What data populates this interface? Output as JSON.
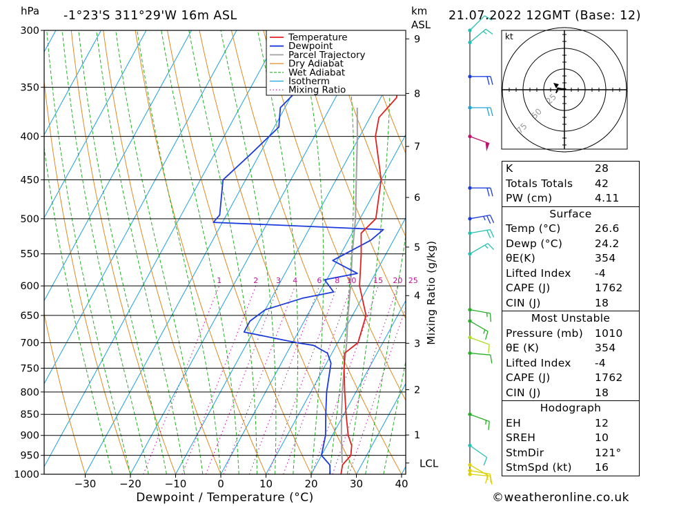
{
  "header": {
    "unit_left": "hPa",
    "location": "-1°23'S  311°29'W  16m  ASL",
    "unit_km": "km",
    "unit_asl": "ASL",
    "datetime": "21.07.2022  12GMT  (Base: 12)"
  },
  "chart_data": {
    "type": "skew-t log-p sounding",
    "xlabel": "Dewpoint / Temperature (°C)",
    "ylabel_left": "hPa",
    "ylabel_right": "Mixing Ratio (g/kg)",
    "pressure_levels": [
      300,
      350,
      400,
      450,
      500,
      550,
      600,
      650,
      700,
      750,
      800,
      850,
      900,
      950,
      1000
    ],
    "temperature_ticks": [
      -30,
      -20,
      -10,
      0,
      10,
      20,
      30,
      40
    ],
    "km_ticks": [
      1,
      2,
      3,
      4,
      5,
      6,
      7,
      8,
      9
    ],
    "km_pressures": [
      899,
      795,
      701,
      616,
      540,
      472,
      411,
      356,
      307
    ],
    "lcl_label": "LCL",
    "lcl_pressure": 970,
    "mixing_ratio_labels": [
      "1",
      "2",
      "3",
      "4",
      "6",
      "8",
      "10",
      "15",
      "20",
      "25"
    ],
    "mixing_ratio_values": [
      1,
      2,
      3,
      4,
      6,
      8,
      10,
      15,
      20,
      25
    ],
    "legend": [
      "Temperature",
      "Dewpoint",
      "Parcel Trajectory",
      "Dry Adiabat",
      "Wet Adiabat",
      "Isotherm",
      "Mixing Ratio"
    ],
    "colors": {
      "temperature": "#e02020",
      "dewpoint": "#1a3adc",
      "parcel": "#a0a0a0",
      "dry_adiabat": "#e08a20",
      "wet_adiabat": "#22b022",
      "isotherm": "#1aa0e0",
      "mixing_ratio": "#c0109a"
    },
    "temperature_profile": [
      [
        1000,
        26.6
      ],
      [
        975,
        25.8
      ],
      [
        950,
        26.5
      ],
      [
        925,
        25.5
      ],
      [
        900,
        23.5
      ],
      [
        850,
        20.5
      ],
      [
        800,
        17.5
      ],
      [
        750,
        14.5
      ],
      [
        720,
        12.8
      ],
      [
        700,
        14.5
      ],
      [
        650,
        13.0
      ],
      [
        600,
        8.0
      ],
      [
        550,
        4.5
      ],
      [
        520,
        2.0
      ],
      [
        500,
        3.5
      ],
      [
        450,
        0.0
      ],
      [
        400,
        -6.5
      ],
      [
        380,
        -8.0
      ],
      [
        360,
        -6.5
      ],
      [
        350,
        -7.5
      ]
    ],
    "dewpoint_profile": [
      [
        1000,
        24.2
      ],
      [
        975,
        23.0
      ],
      [
        950,
        20.0
      ],
      [
        900,
        18.5
      ],
      [
        850,
        16.0
      ],
      [
        800,
        13.5
      ],
      [
        740,
        11.0
      ],
      [
        720,
        9.0
      ],
      [
        705,
        5.0
      ],
      [
        700,
        1.0
      ],
      [
        680,
        -12.0
      ],
      [
        660,
        -12.0
      ],
      [
        640,
        -10.0
      ],
      [
        620,
        -3.0
      ],
      [
        610,
        3.0
      ],
      [
        590,
        -0.5
      ],
      [
        580,
        6.0
      ],
      [
        560,
        -1.0
      ],
      [
        530,
        5.0
      ],
      [
        515,
        6.5
      ],
      [
        505,
        -32.0
      ],
      [
        495,
        -31.5
      ],
      [
        450,
        -35.0
      ],
      [
        420,
        -32.0
      ],
      [
        390,
        -29.0
      ],
      [
        370,
        -31.0
      ],
      [
        340,
        -28.0
      ],
      [
        330,
        -25.0
      ],
      [
        320,
        -24.0
      ],
      [
        305,
        -21.0
      ]
    ],
    "parcel_profile": [
      [
        970,
        25.5
      ],
      [
        900,
        22.0
      ],
      [
        850,
        19.5
      ],
      [
        800,
        17.0
      ],
      [
        750,
        14.5
      ],
      [
        700,
        12.0
      ],
      [
        650,
        9.0
      ],
      [
        600,
        6.0
      ],
      [
        550,
        2.5
      ],
      [
        500,
        -1.0
      ],
      [
        450,
        -5.5
      ],
      [
        400,
        -10.5
      ],
      [
        370,
        -14.0
      ]
    ],
    "wind_barbs": [
      {
        "p": 1000,
        "dir": 95,
        "spd": 15,
        "color": "#dcd000"
      },
      {
        "p": 990,
        "dir": 100,
        "spd": 15,
        "color": "#dcd000"
      },
      {
        "p": 975,
        "dir": 120,
        "spd": 10,
        "color": "#dcd000"
      },
      {
        "p": 925,
        "dir": 125,
        "spd": 10,
        "color": "#22c0b0"
      },
      {
        "p": 850,
        "dir": 110,
        "spd": 15,
        "color": "#22b022"
      },
      {
        "p": 720,
        "dir": 95,
        "spd": 10,
        "color": "#22b022"
      },
      {
        "p": 690,
        "dir": 110,
        "spd": 10,
        "color": "#aadd22"
      },
      {
        "p": 660,
        "dir": 120,
        "spd": 15,
        "color": "#22b022"
      },
      {
        "p": 640,
        "dir": 100,
        "spd": 15,
        "color": "#22b022"
      },
      {
        "p": 550,
        "dir": 60,
        "spd": 15,
        "color": "#22c0b0"
      },
      {
        "p": 520,
        "dir": 80,
        "spd": 20,
        "color": "#22c0b0"
      },
      {
        "p": 500,
        "dir": 80,
        "spd": 25,
        "color": "#1a3adc"
      },
      {
        "p": 460,
        "dir": 90,
        "spd": 20,
        "color": "#1a3adc"
      },
      {
        "p": 400,
        "dir": 110,
        "spd": 50,
        "color": "#c0106a"
      },
      {
        "p": 370,
        "dir": 90,
        "spd": 20,
        "color": "#22a0d0"
      },
      {
        "p": 340,
        "dir": 90,
        "spd": 20,
        "color": "#1a3adc"
      },
      {
        "p": 310,
        "dir": 50,
        "spd": 15,
        "color": "#22c0b0"
      },
      {
        "p": 300,
        "dir": 45,
        "spd": 10,
        "color": "#22c0b0"
      }
    ]
  },
  "hodograph": {
    "unit": "kt",
    "rings": [
      "25",
      "50",
      "75"
    ],
    "points": [
      [
        -10,
        4
      ],
      [
        -8,
        -2
      ],
      [
        -3,
        -1
      ],
      [
        2,
        -1
      ]
    ]
  },
  "indices": {
    "rows": [
      {
        "label": "K",
        "value": "28"
      },
      {
        "label": "Totals Totals",
        "value": "42"
      },
      {
        "label": "PW (cm)",
        "value": "4.11"
      }
    ]
  },
  "surface": {
    "title": "Surface",
    "rows": [
      {
        "label": "Temp (°C)",
        "value": "26.6"
      },
      {
        "label": "Dewp (°C)",
        "value": "24.2"
      },
      {
        "label": "θE(K)",
        "value": "354"
      },
      {
        "label": "Lifted Index",
        "value": "-4"
      },
      {
        "label": "CAPE (J)",
        "value": "1762"
      },
      {
        "label": "CIN (J)",
        "value": "18"
      }
    ]
  },
  "most_unstable": {
    "title": "Most Unstable",
    "rows": [
      {
        "label": "Pressure (mb)",
        "value": "1010"
      },
      {
        "label": "θE (K)",
        "value": "354"
      },
      {
        "label": "Lifted Index",
        "value": "-4"
      },
      {
        "label": "CAPE (J)",
        "value": "1762"
      },
      {
        "label": "CIN (J)",
        "value": "18"
      }
    ]
  },
  "hodograph_table": {
    "title": "Hodograph",
    "rows": [
      {
        "label": "EH",
        "value": "12"
      },
      {
        "label": "SREH",
        "value": "10"
      },
      {
        "label": "StmDir",
        "value": "121°"
      },
      {
        "label": "StmSpd (kt)",
        "value": "16"
      }
    ]
  },
  "footer": "©weatheronline.co.uk"
}
